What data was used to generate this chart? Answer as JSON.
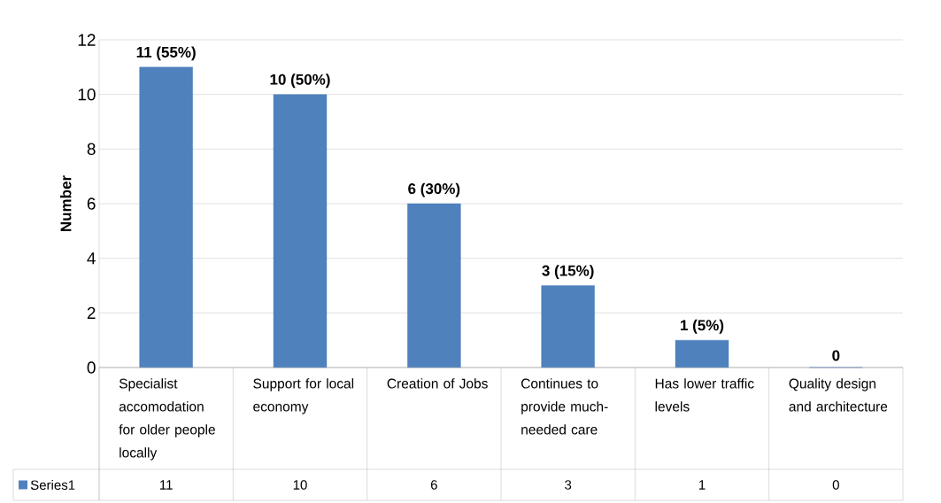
{
  "chart_data": {
    "type": "bar",
    "ylabel": "Number",
    "categories": [
      "Specialist accomodation for older people locally",
      "Support for local economy",
      "Creation of Jobs",
      "Continues to provide much-needed care",
      "Has lower traffic levels",
      "Quality design and architecture"
    ],
    "series": [
      {
        "name": "Series1",
        "color": "#4f81bd",
        "values": [
          11,
          10,
          6,
          3,
          1,
          0
        ]
      }
    ],
    "annotations": [
      {
        "text": "11 (55%)",
        "x": "Specialist accomodation for older people locally",
        "y": 11
      },
      {
        "text": "10 (50%)",
        "x": "Support for local economy",
        "y": 10
      },
      {
        "text": "6 (30%)",
        "x": "Creation of Jobs",
        "y": 6
      },
      {
        "text": "3 (15%)",
        "x": "Continues to provide much-needed care",
        "y": 3
      },
      {
        "text": "1 (5%)",
        "x": "Has lower traffic levels",
        "y": 1
      },
      {
        "text": "0",
        "x": "Quality design and architecture",
        "y": 0
      }
    ],
    "ylim": [
      0,
      12
    ],
    "yticks": [
      0,
      2,
      4,
      6,
      8,
      10,
      12
    ],
    "grid": "y",
    "legend": "bottom",
    "data_labels": true
  }
}
